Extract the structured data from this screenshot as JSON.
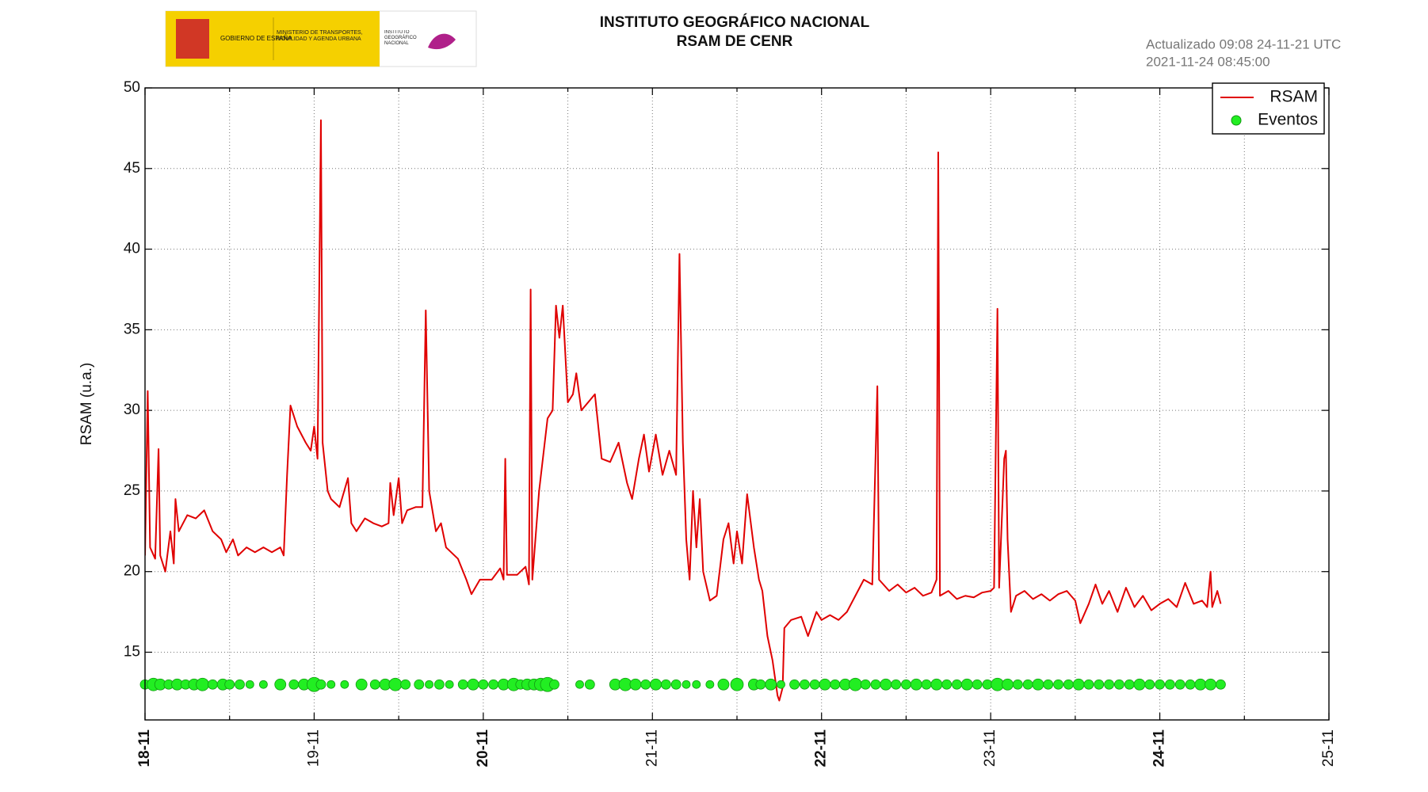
{
  "chart_data": {
    "type": "line",
    "title": "INSTITUTO GEOGRÁFICO NACIONAL",
    "subtitle": "RSAM DE CENR",
    "annotations": [
      "Actualizado 09:08 24-11-21 UTC",
      "2021-11-24 08:45:00"
    ],
    "logo_texts": [
      "GOBIERNO DE ESPAÑA",
      "MINISTERIO DE TRANSPORTES, MOVILIDAD Y AGENDA URBANA",
      "INSTITUTO GEOGRÁFICO NACIONAL"
    ],
    "y_label": "RSAM (u.a.)",
    "xlim": [
      0,
      7
    ],
    "xticks": [
      {
        "value": 0,
        "label": "18-11"
      },
      {
        "value": 1,
        "label": "19-11"
      },
      {
        "value": 2,
        "label": "20-11"
      },
      {
        "value": 3,
        "label": "21-11"
      },
      {
        "value": 4,
        "label": "22-11"
      },
      {
        "value": 5,
        "label": "23-11"
      },
      {
        "value": 6,
        "label": "24-11"
      },
      {
        "value": 7,
        "label": "25-11"
      }
    ],
    "xminorticks": [
      0.5,
      1.5,
      2.5,
      3.5,
      4.5,
      5.5,
      6.5
    ],
    "ylim": [
      10.8,
      50
    ],
    "yticks": [
      15,
      20,
      25,
      30,
      35,
      40,
      45,
      50
    ],
    "grid": true,
    "legend": "upper-right",
    "series": [
      {
        "name": "RSAM",
        "color": "#e00000",
        "type": "line",
        "x": [
          0,
          0.016,
          0.03,
          0.06,
          0.08,
          0.09,
          0.12,
          0.15,
          0.17,
          0.18,
          0.2,
          0.25,
          0.3,
          0.35,
          0.4,
          0.45,
          0.48,
          0.52,
          0.55,
          0.6,
          0.65,
          0.7,
          0.75,
          0.8,
          0.82,
          0.84,
          0.86,
          0.9,
          0.95,
          0.98,
          1.0,
          1.02,
          1.04,
          1.05,
          1.08,
          1.1,
          1.15,
          1.2,
          1.22,
          1.25,
          1.3,
          1.35,
          1.4,
          1.44,
          1.45,
          1.47,
          1.5,
          1.52,
          1.55,
          1.6,
          1.64,
          1.66,
          1.68,
          1.72,
          1.75,
          1.78,
          1.85,
          1.9,
          1.93,
          1.98,
          2.05,
          2.1,
          2.12,
          2.13,
          2.14,
          2.2,
          2.25,
          2.27,
          2.28,
          2.29,
          2.33,
          2.38,
          2.41,
          2.43,
          2.45,
          2.47,
          2.5,
          2.53,
          2.55,
          2.58,
          2.62,
          2.66,
          2.7,
          2.75,
          2.8,
          2.85,
          2.88,
          2.92,
          2.95,
          2.98,
          3.02,
          3.06,
          3.1,
          3.14,
          3.16,
          3.18,
          3.2,
          3.22,
          3.24,
          3.26,
          3.28,
          3.3,
          3.34,
          3.38,
          3.42,
          3.45,
          3.48,
          3.5,
          3.53,
          3.56,
          3.6,
          3.63,
          3.65,
          3.68,
          3.71,
          3.74,
          3.75,
          3.77,
          3.78,
          3.82,
          3.88,
          3.92,
          3.97,
          4.0,
          4.05,
          4.1,
          4.15,
          4.2,
          4.25,
          4.3,
          4.33,
          4.34,
          4.4,
          4.45,
          4.5,
          4.55,
          4.6,
          4.65,
          4.68,
          4.69,
          4.7,
          4.75,
          4.8,
          4.85,
          4.9,
          4.95,
          5.0,
          5.02,
          5.04,
          5.05,
          5.08,
          5.09,
          5.1,
          5.12,
          5.15,
          5.2,
          5.25,
          5.3,
          5.35,
          5.4,
          5.45,
          5.5,
          5.53,
          5.58,
          5.62,
          5.66,
          5.7,
          5.75,
          5.8,
          5.85,
          5.9,
          5.95,
          6.0,
          6.05,
          6.1,
          6.15,
          6.2,
          6.25,
          6.28,
          6.3,
          6.31,
          6.34,
          6.36
        ],
        "values": [
          21,
          31.2,
          21.5,
          20.8,
          27.6,
          21,
          20,
          22.5,
          20.5,
          24.5,
          22.5,
          23.5,
          23.3,
          23.8,
          22.5,
          22,
          21.2,
          22,
          21,
          21.5,
          21.2,
          21.5,
          21.2,
          21.5,
          21,
          26,
          30.3,
          29,
          28,
          27.5,
          29,
          27,
          48,
          28,
          25,
          24.5,
          24,
          25.8,
          23,
          22.5,
          23.3,
          23,
          22.8,
          23,
          25.5,
          23.5,
          25.8,
          23,
          23.8,
          24,
          24,
          36.2,
          25,
          22.5,
          23,
          21.5,
          20.8,
          19.5,
          18.6,
          19.5,
          19.5,
          20.2,
          19.5,
          27,
          19.8,
          19.8,
          20.3,
          19.2,
          37.5,
          19.5,
          25,
          29.5,
          30,
          36.5,
          34.5,
          36.5,
          30.5,
          31,
          32.3,
          30,
          30.5,
          31,
          27,
          26.8,
          28,
          25.5,
          24.5,
          27,
          28.5,
          26.2,
          28.5,
          26,
          27.5,
          26,
          39.7,
          28,
          22,
          19.5,
          25,
          21.5,
          24.5,
          20,
          18.2,
          18.5,
          22,
          23,
          20.5,
          22.5,
          20.5,
          24.8,
          21.5,
          19.5,
          18.8,
          16,
          14.5,
          12.3,
          12,
          12.8,
          16.5,
          17,
          17.2,
          16,
          17.5,
          17,
          17.3,
          17,
          17.5,
          18.5,
          19.5,
          19.2,
          31.5,
          19.5,
          18.8,
          19.2,
          18.7,
          19,
          18.5,
          18.7,
          19.5,
          46,
          18.5,
          18.8,
          18.3,
          18.5,
          18.4,
          18.7,
          18.8,
          19,
          36.3,
          19,
          27,
          27.5,
          22,
          17.5,
          18.5,
          18.8,
          18.3,
          18.6,
          18.2,
          18.6,
          18.8,
          18.2,
          16.8,
          18,
          19.2,
          18,
          18.8,
          17.5,
          19,
          17.8,
          18.5,
          17.6,
          18,
          18.3,
          17.8,
          19.3,
          18,
          18.2,
          17.8,
          20,
          17.8,
          18.8,
          18
        ]
      },
      {
        "name": "Eventos",
        "color": "#22ee22",
        "type": "scatter",
        "x": [
          0,
          0.05,
          0.09,
          0.14,
          0.19,
          0.24,
          0.29,
          0.34,
          0.4,
          0.46,
          0.5,
          0.56,
          0.62,
          0.7,
          0.8,
          0.88,
          0.94,
          1.0,
          1.04,
          1.1,
          1.18,
          1.28,
          1.36,
          1.42,
          1.48,
          1.54,
          1.62,
          1.68,
          1.74,
          1.8,
          1.88,
          1.94,
          2.0,
          2.06,
          2.12,
          2.18,
          2.22,
          2.26,
          2.3,
          2.34,
          2.38,
          2.42,
          2.57,
          2.63,
          2.78,
          2.84,
          2.9,
          2.96,
          3.02,
          3.08,
          3.14,
          3.2,
          3.26,
          3.34,
          3.42,
          3.5,
          3.6,
          3.64,
          3.7,
          3.76,
          3.84,
          3.9,
          3.96,
          4.02,
          4.08,
          4.14,
          4.2,
          4.26,
          4.32,
          4.38,
          4.44,
          4.5,
          4.56,
          4.62,
          4.68,
          4.74,
          4.8,
          4.86,
          4.92,
          4.98,
          5.04,
          5.1,
          5.16,
          5.22,
          5.28,
          5.34,
          5.4,
          5.46,
          5.52,
          5.58,
          5.64,
          5.7,
          5.76,
          5.82,
          5.88,
          5.94,
          6.0,
          6.06,
          6.12,
          6.18,
          6.24,
          6.3,
          6.36
        ],
        "values": [
          13,
          13,
          13,
          13,
          13,
          13,
          13,
          13,
          13,
          13,
          13,
          13,
          13,
          13,
          13,
          13,
          13,
          13,
          13,
          13,
          13,
          13,
          13,
          13,
          13,
          13,
          13,
          13,
          13,
          13,
          13,
          13,
          13,
          13,
          13,
          13,
          13,
          13,
          13,
          13,
          13,
          13,
          13,
          13,
          13,
          13,
          13,
          13,
          13,
          13,
          13,
          13,
          13,
          13,
          13,
          13,
          13,
          13,
          13,
          13,
          13,
          13,
          13,
          13,
          13,
          13,
          13,
          13,
          13,
          13,
          13,
          13,
          13,
          13,
          13,
          13,
          13,
          13,
          13,
          13,
          13,
          13,
          13,
          13,
          13,
          13,
          13,
          13,
          13,
          13,
          13,
          13,
          13,
          13,
          13,
          13,
          13,
          13,
          13,
          13,
          13,
          13,
          13
        ],
        "sizes": [
          6,
          8,
          7,
          6,
          7,
          6,
          7,
          8,
          6,
          7,
          6,
          6,
          5,
          5,
          7,
          6,
          7,
          9,
          6,
          5,
          5,
          7,
          6,
          7,
          8,
          6,
          6,
          5,
          6,
          5,
          6,
          7,
          6,
          6,
          7,
          8,
          6,
          7,
          7,
          8,
          9,
          6,
          5,
          6,
          7,
          8,
          7,
          6,
          7,
          6,
          6,
          5,
          5,
          5,
          7,
          8,
          7,
          6,
          7,
          5,
          6,
          6,
          6,
          7,
          6,
          7,
          8,
          6,
          6,
          7,
          6,
          6,
          7,
          6,
          7,
          6,
          6,
          7,
          6,
          6,
          8,
          7,
          6,
          6,
          7,
          6,
          6,
          6,
          7,
          6,
          6,
          6,
          6,
          6,
          7,
          6,
          6,
          6,
          6,
          6,
          7,
          7,
          6
        ]
      }
    ]
  }
}
